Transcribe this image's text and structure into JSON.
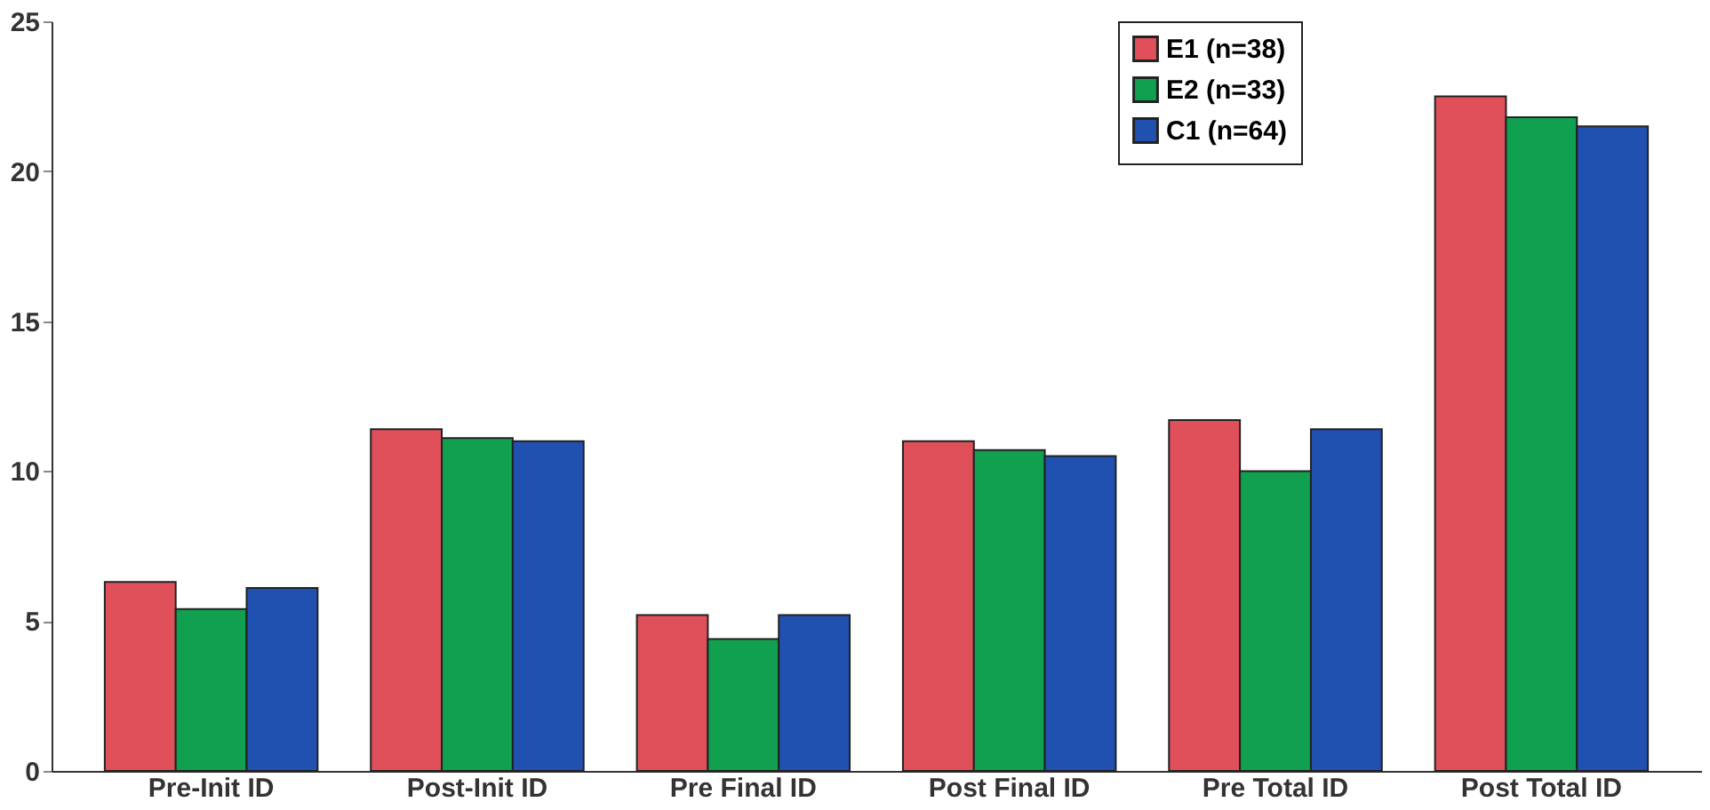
{
  "chart_data": {
    "type": "bar",
    "categories": [
      "Pre-Init ID",
      "Post-Init ID",
      "Pre Final ID",
      "Post Final ID",
      "Pre Total ID",
      "Post Total ID"
    ],
    "series": [
      {
        "name": "E1 (n=38)",
        "color": "#e0505a",
        "values": [
          6.3,
          11.4,
          5.2,
          11.0,
          11.7,
          22.5
        ]
      },
      {
        "name": "E2 (n=33)",
        "color": "#10a050",
        "values": [
          5.4,
          11.1,
          4.4,
          10.7,
          10.0,
          21.8
        ]
      },
      {
        "name": "C1 (n=64)",
        "color": "#2050b0",
        "values": [
          6.1,
          11.0,
          5.2,
          10.5,
          11.4,
          21.5
        ]
      }
    ],
    "ylim": [
      0,
      25
    ],
    "yticks": [
      0,
      5,
      10,
      15,
      20,
      25
    ],
    "grid": false,
    "legend": "top right"
  }
}
